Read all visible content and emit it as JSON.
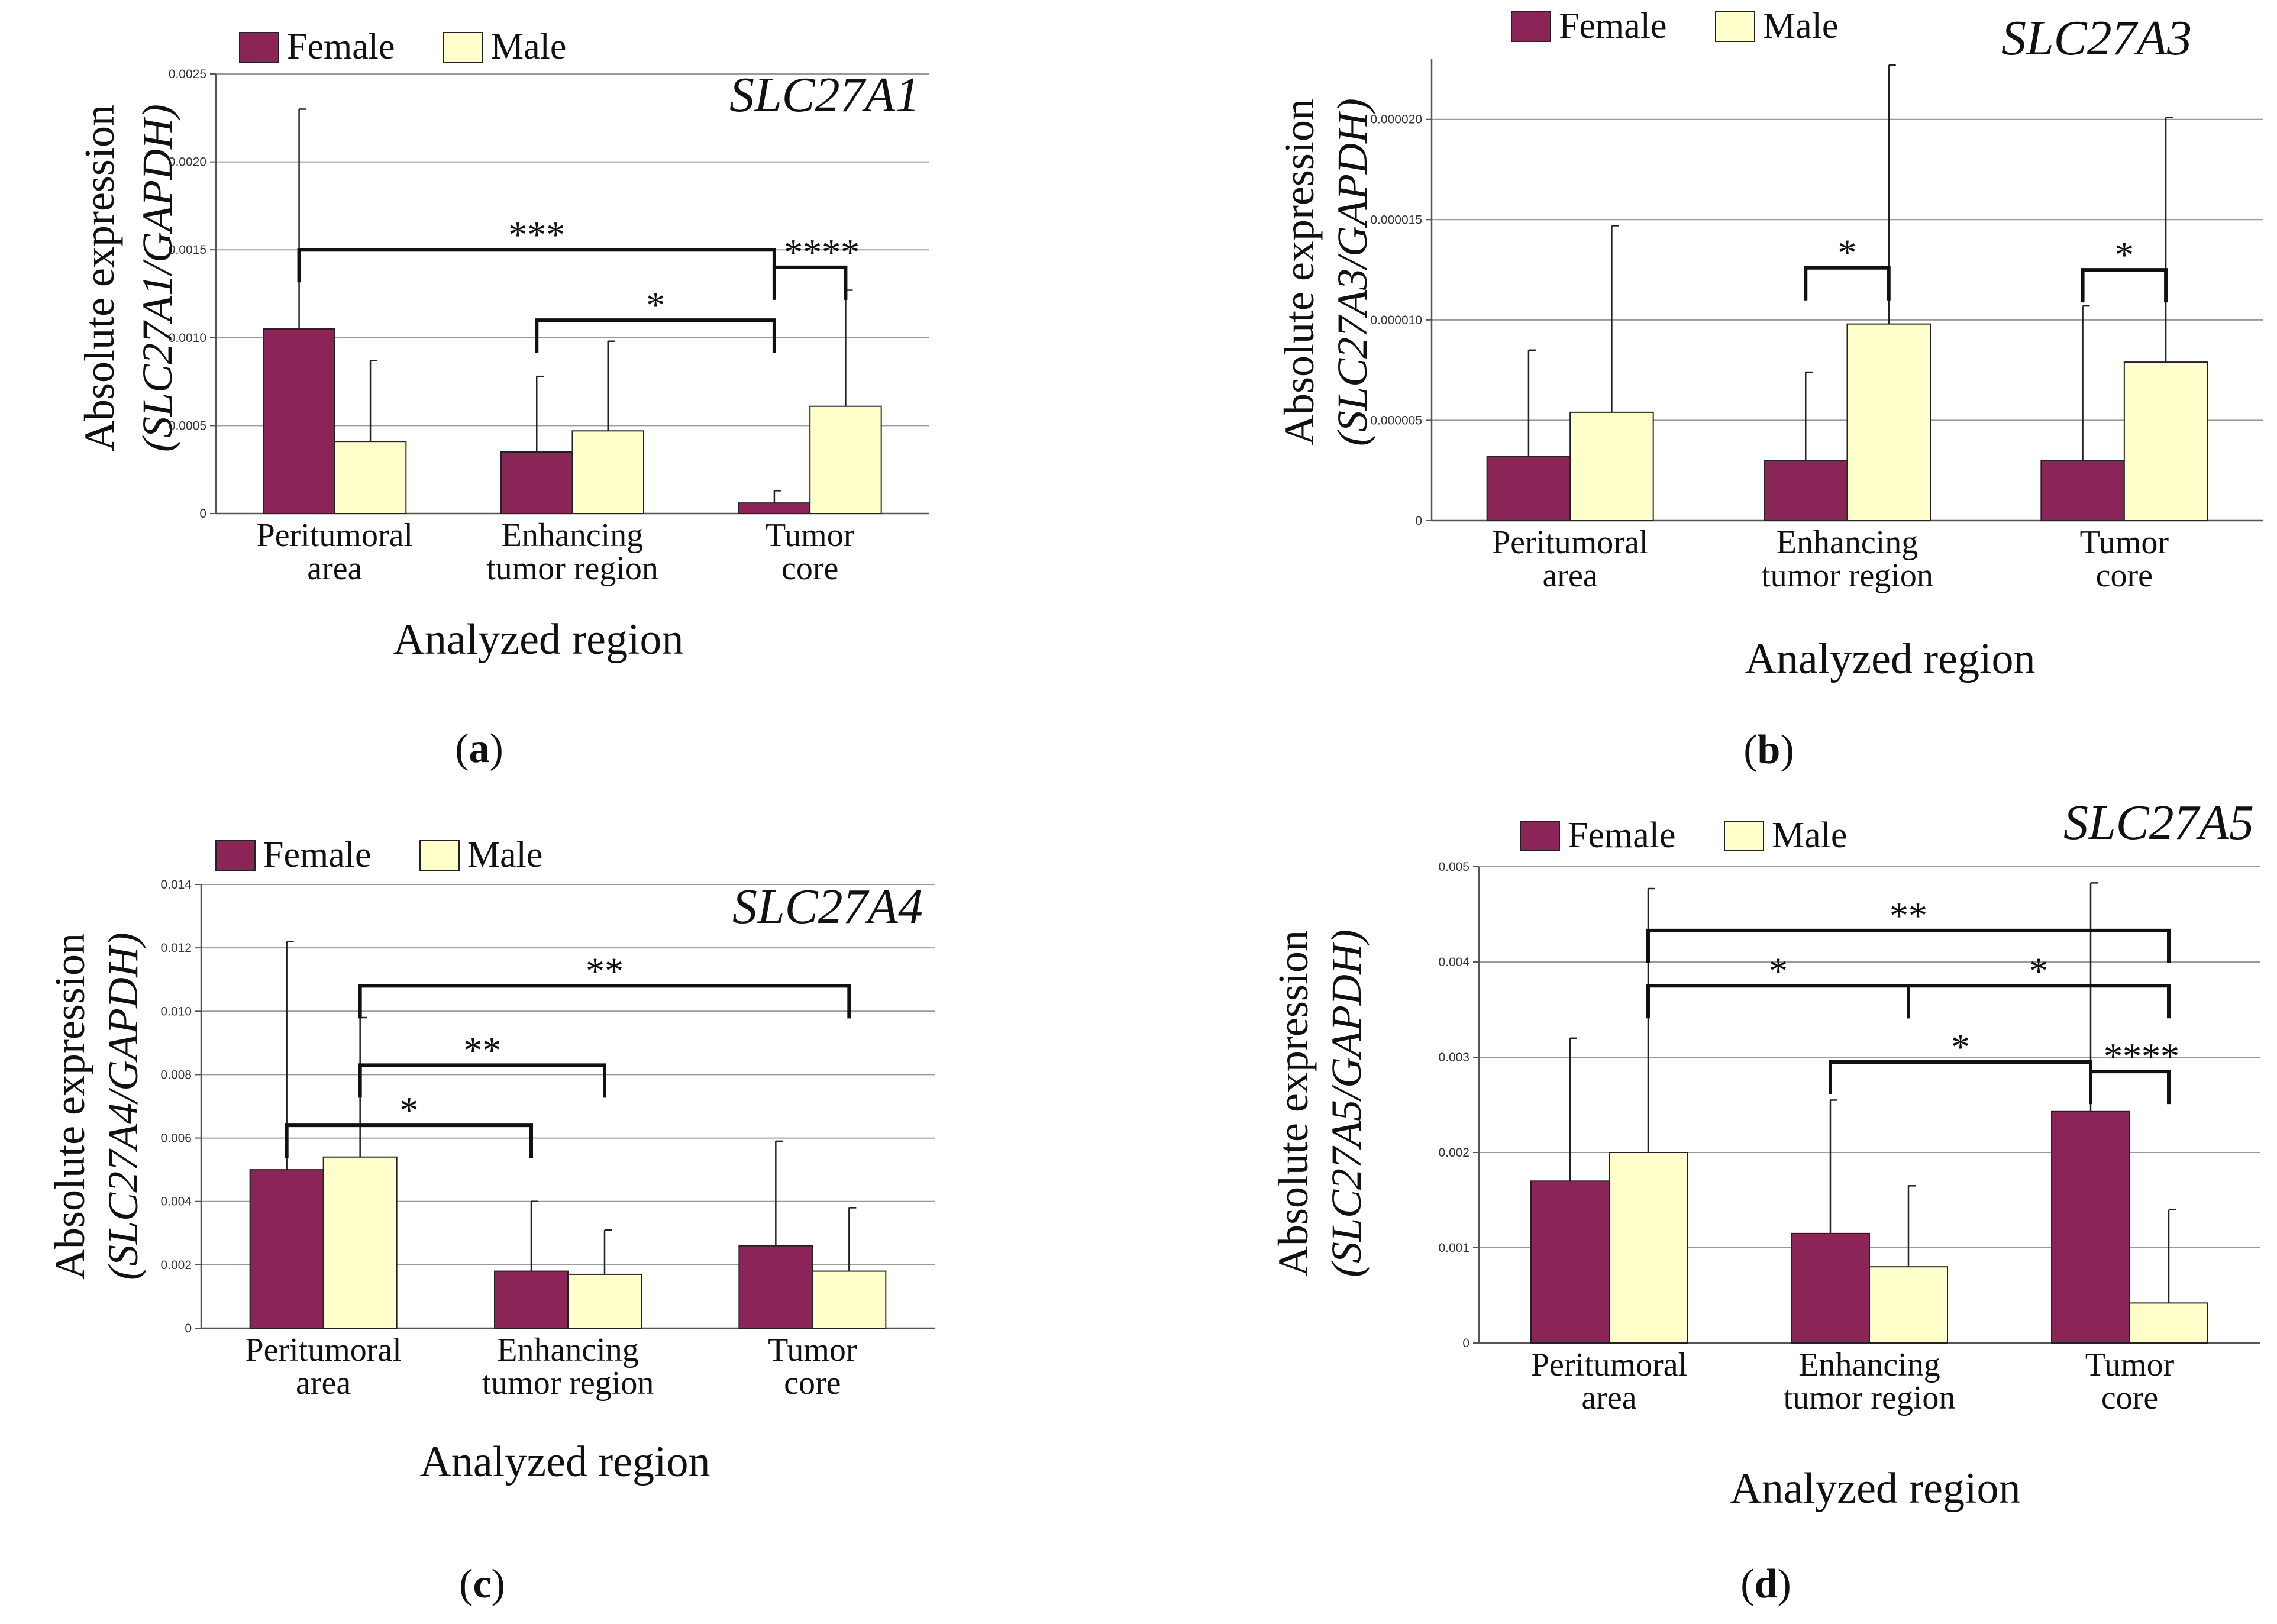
{
  "colors": {
    "female": "#8b2557",
    "male": "#ffffcc",
    "grid": "#9a9a9a",
    "ink": "#111111"
  },
  "legend": {
    "female": "Female",
    "male": "Male"
  },
  "chart_data": [
    {
      "type": "bar",
      "panel_label": "a",
      "gene": "SLC27A1",
      "ylabel": {
        "line1": "Absolute expression",
        "line2": "(SLC27A1/GAPDH)"
      },
      "xlabel": "Analyzed region",
      "categories": [
        [
          "Peritumoral",
          "area"
        ],
        [
          "Enhancing",
          "tumor region"
        ],
        [
          "Tumor",
          "core"
        ]
      ],
      "ylim": [
        0,
        0.0025
      ],
      "yticks": [
        "0",
        "0.0005",
        "0.0010",
        "0.0015",
        "0.0020",
        "0.0025"
      ],
      "grid": true,
      "legend_position": "top-left",
      "series": [
        {
          "name": "Female",
          "values": [
            0.00105,
            0.00035,
            6e-05
          ],
          "errors": [
            0.00125,
            0.00043,
            7e-05
          ]
        },
        {
          "name": "Male",
          "values": [
            0.00041,
            0.00047,
            0.00061
          ],
          "errors": [
            0.00046,
            0.00051,
            0.00066
          ]
        }
      ],
      "brackets": [
        {
          "from": [
            0,
            "Female"
          ],
          "to": [
            2,
            "Female"
          ],
          "level": 0.0015,
          "label": "***"
        },
        {
          "from": [
            1,
            "Female"
          ],
          "to": [
            2,
            "Female"
          ],
          "level": 0.0011,
          "label": "*"
        },
        {
          "from": [
            2,
            "Female"
          ],
          "to": [
            2,
            "Male"
          ],
          "level": 0.0014,
          "label": "****"
        }
      ]
    },
    {
      "type": "bar",
      "panel_label": "b",
      "gene": "SLC27A3",
      "ylabel": {
        "line1": "Absolute expression",
        "line2": "(SLC27A3/GAPDH)"
      },
      "xlabel": "Analyzed region",
      "categories": [
        [
          "Peritumoral",
          "area"
        ],
        [
          "Enhancing",
          "tumor region"
        ],
        [
          "Tumor",
          "core"
        ]
      ],
      "ylim": [
        0,
        2.3e-05
      ],
      "yticks": [
        "0",
        "0.000005",
        "0.000010",
        "0.000015",
        "0.000020"
      ],
      "grid": true,
      "legend_position": "top-left",
      "series": [
        {
          "name": "Female",
          "values": [
            3.2e-06,
            3e-06,
            3e-06
          ],
          "errors": [
            5.3e-06,
            4.4e-06,
            7.7e-06
          ]
        },
        {
          "name": "Male",
          "values": [
            5.4e-06,
            9.8e-06,
            7.9e-06
          ],
          "errors": [
            9.3e-06,
            1.29e-05,
            1.22e-05
          ]
        }
      ],
      "brackets": [
        {
          "from": [
            1,
            "Female"
          ],
          "to": [
            1,
            "Male"
          ],
          "level": 1.26e-05,
          "label": "*"
        },
        {
          "from": [
            2,
            "Female"
          ],
          "to": [
            2,
            "Male"
          ],
          "level": 1.25e-05,
          "label": "*"
        }
      ]
    },
    {
      "type": "bar",
      "panel_label": "c",
      "gene": "SLC27A4",
      "ylabel": {
        "line1": "Absolute expression",
        "line2": "(SLC27A4/GAPDH)"
      },
      "xlabel": "Analyzed region",
      "categories": [
        [
          "Peritumoral",
          "area"
        ],
        [
          "Enhancing",
          "tumor region"
        ],
        [
          "Tumor",
          "core"
        ]
      ],
      "ylim": [
        0,
        0.014
      ],
      "yticks": [
        "0",
        "0.002",
        "0.004",
        "0.006",
        "0.008",
        "0.010",
        "0.012",
        "0.014"
      ],
      "grid": true,
      "legend_position": "top-left",
      "series": [
        {
          "name": "Female",
          "values": [
            0.005,
            0.0018,
            0.0026
          ],
          "errors": [
            0.0072,
            0.0022,
            0.0033
          ]
        },
        {
          "name": "Male",
          "values": [
            0.0054,
            0.0017,
            0.0018
          ],
          "errors": [
            0.0044,
            0.0014,
            0.002
          ]
        }
      ],
      "brackets": [
        {
          "from": [
            0,
            "Female"
          ],
          "to": [
            1,
            "Female"
          ],
          "level": 0.0064,
          "label": "*"
        },
        {
          "from": [
            0,
            "Male"
          ],
          "to": [
            1,
            "Male"
          ],
          "level": 0.0083,
          "label": "**"
        },
        {
          "from": [
            0,
            "Male"
          ],
          "to": [
            2,
            "Male"
          ],
          "level": 0.0108,
          "label": "**"
        }
      ]
    },
    {
      "type": "bar",
      "panel_label": "d",
      "gene": "SLC27A5",
      "ylabel": {
        "line1": "Absolute expression",
        "line2": "(SLC27A5/GAPDH)"
      },
      "xlabel": "Analyzed region",
      "categories": [
        [
          "Peritumoral",
          "area"
        ],
        [
          "Enhancing",
          "tumor region"
        ],
        [
          "Tumor",
          "core"
        ]
      ],
      "ylim": [
        0,
        0.005
      ],
      "yticks": [
        "0",
        "0.001",
        "0.002",
        "0.003",
        "0.004",
        "0.005"
      ],
      "grid": true,
      "legend_position": "top-left",
      "series": [
        {
          "name": "Female",
          "values": [
            0.0017,
            0.00115,
            0.00243
          ],
          "errors": [
            0.0015,
            0.0014,
            0.0024
          ]
        },
        {
          "name": "Male",
          "values": [
            0.002,
            0.0008,
            0.00042
          ],
          "errors": [
            0.00277,
            0.00085,
            0.00098
          ]
        }
      ],
      "brackets": [
        {
          "from": [
            0,
            "Male"
          ],
          "to": [
            2,
            "Male"
          ],
          "level": 0.00433,
          "label": "**"
        },
        {
          "from": [
            0,
            "Male"
          ],
          "to": [
            1,
            "Male"
          ],
          "level": 0.00375,
          "label": "*"
        },
        {
          "from": [
            1,
            "Male"
          ],
          "to": [
            2,
            "Male"
          ],
          "level": 0.00375,
          "label": "*"
        },
        {
          "from": [
            1,
            "Female"
          ],
          "to": [
            2,
            "Female"
          ],
          "level": 0.00295,
          "label": "*"
        },
        {
          "from": [
            2,
            "Female"
          ],
          "to": [
            2,
            "Male"
          ],
          "level": 0.00285,
          "label": "****"
        }
      ]
    }
  ]
}
